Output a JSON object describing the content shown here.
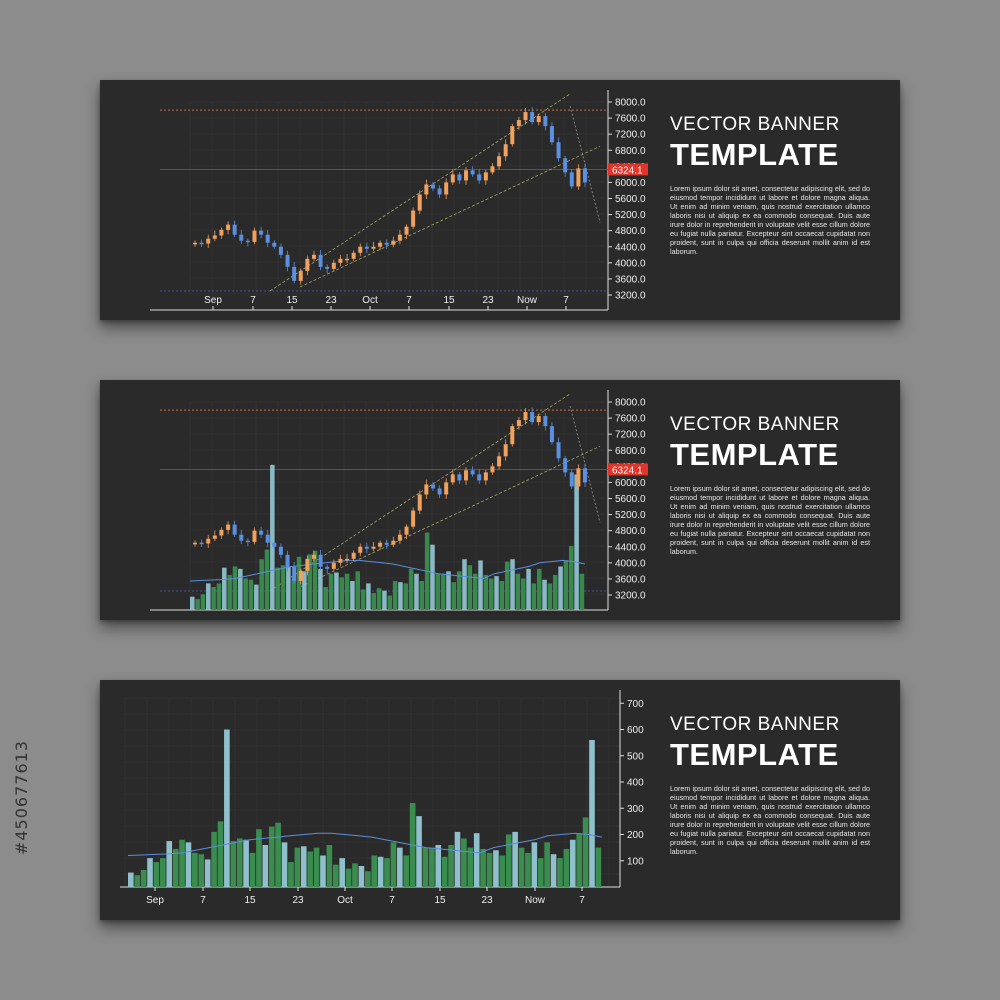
{
  "stock_id": "#450677613",
  "banners": [
    {
      "heading1": "VECTOR BANNER",
      "heading2": "TEMPLATE",
      "body": "Lorem ipsum dolor sit amet, consectetur adipiscing elit, sed do eiusmod tempor incididunt ut labore et dolore magna aliqua. Ut enim ad minim veniam, quis nostrud exercitation ullamco laboris nisi ut aliquip ex ea commodo consequat. Duis aute irure dolor in reprehenderit in voluptate velit esse cillum dolore eu fugiat nulla pariatur. Excepteur sint occaecat cupidatat non proident, sunt in culpa qui officia deserunt mollit anim id est laborum."
    },
    {
      "heading1": "VECTOR BANNER",
      "heading2": "TEMPLATE",
      "body": "Lorem ipsum dolor sit amet, consectetur adipiscing elit, sed do eiusmod tempor incididunt ut labore et dolore magna aliqua. Ut enim ad minim veniam, quis nostrud exercitation ullamco laboris nisi ut aliquip ex ea commodo consequat. Duis aute irure dolor in reprehenderit in voluptate velit esse cillum dolore eu fugiat nulla pariatur. Excepteur sint occaecat cupidatat non proident, sunt in culpa qui officia deserunt mollit anim id est laborum."
    },
    {
      "heading1": "VECTOR BANNER",
      "heading2": "TEMPLATE",
      "body": "Lorem ipsum dolor sit amet, consectetur adipiscing elit, sed do eiusmod tempor incididunt ut labore et dolore magna aliqua. Ut enim ad minim veniam, quis nostrud exercitation ullamco laboris nisi ut aliquip ex ea commodo consequat. Duis aute irure dolor in reprehenderit in voluptate velit esse cillum dolore eu fugiat nulla pariatur. Excepteur sint occaecat cupidatat non proident, sunt in culpa qui officia deserunt mollit anim id est laborum."
    }
  ],
  "colors": {
    "background": "#8c8c8c",
    "panel": "#2a2a2a",
    "up": "#f0a15e",
    "down": "#5b8fe0",
    "vol_a": "#3a8d4e",
    "vol_b": "#8fc0cc",
    "ma": "#5b8fe0",
    "level": "#e0352a",
    "support": "#5a5ad8",
    "trend": "#a6a66b"
  },
  "chart_data": [
    {
      "type": "candlestick",
      "x_labels": [
        "Sep",
        "7",
        "15",
        "23",
        "Oct",
        "7",
        "15",
        "23",
        "Now",
        "7"
      ],
      "y_ticks": [
        "8000.0",
        "7600.0",
        "7200.0",
        "6800.0",
        "6400.0",
        "6000.0",
        "5600.0",
        "5200.0",
        "4800.0",
        "4400.0",
        "4000.0",
        "3600.0",
        "3200.0"
      ],
      "ylim": [
        3200,
        8000
      ],
      "current_price_label": "6324.1",
      "current_price": 6324.1,
      "resistance_level": 7800,
      "support_level": 3300,
      "close": [
        4500,
        4480,
        4600,
        4680,
        4820,
        4950,
        4700,
        4550,
        4520,
        4800,
        4700,
        4500,
        4400,
        4200,
        3900,
        3550,
        3800,
        4100,
        4200,
        3900,
        3850,
        4000,
        4100,
        4100,
        4250,
        4400,
        4350,
        4400,
        4500,
        4450,
        4550,
        4700,
        4900,
        5300,
        5700,
        5950,
        5850,
        5700,
        6000,
        6200,
        6050,
        6300,
        6200,
        6050,
        6250,
        6400,
        6650,
        6950,
        7400,
        7550,
        7750,
        7500,
        7650,
        7400,
        7000,
        6600,
        6250,
        5900,
        6350,
        6000
      ],
      "open_change_pattern": "prev_close"
    },
    {
      "type": "candlestick+bar",
      "x_labels": [],
      "y_ticks": [
        "8000.0",
        "7600.0",
        "7200.0",
        "6800.0",
        "6400.0",
        "6000.0",
        "5600.0",
        "5200.0",
        "4800.0",
        "4400.0",
        "4000.0",
        "3600.0",
        "3200.0"
      ],
      "ylim": [
        3200,
        8000
      ],
      "current_price_label": "6324.1",
      "current_price": 6324.1,
      "resistance_level": 7800,
      "support_level": 3300,
      "note": "price series same as chart 1; volume bars and moving average overlaid"
    },
    {
      "type": "bar",
      "x_labels": [
        "Sep",
        "7",
        "15",
        "23",
        "Oct",
        "7",
        "15",
        "23",
        "Now",
        "7"
      ],
      "y_ticks": [
        "700",
        "600",
        "500",
        "400",
        "300",
        "200",
        "100"
      ],
      "ylim": [
        0,
        720
      ],
      "volume": [
        55,
        45,
        65,
        110,
        95,
        110,
        175,
        145,
        180,
        170,
        130,
        125,
        105,
        210,
        250,
        600,
        175,
        185,
        180,
        130,
        220,
        160,
        230,
        245,
        170,
        95,
        150,
        155,
        135,
        150,
        120,
        160,
        85,
        110,
        70,
        90,
        80,
        60,
        120,
        115,
        110,
        170,
        150,
        120,
        320,
        270,
        150,
        150,
        160,
        115,
        160,
        210,
        185,
        150,
        205,
        145,
        130,
        140,
        120,
        200,
        210,
        150,
        130,
        170,
        110,
        170,
        125,
        110,
        145,
        180,
        205,
        265,
        560,
        150
      ],
      "moving_average": [
        120,
        122,
        124,
        126,
        130,
        140,
        150,
        160,
        170,
        180,
        185,
        190,
        195,
        200,
        205,
        205,
        200,
        195,
        190,
        180,
        170,
        160,
        150,
        145,
        140,
        135,
        130,
        150,
        160,
        170,
        180,
        195,
        200,
        205,
        200,
        190
      ]
    }
  ]
}
